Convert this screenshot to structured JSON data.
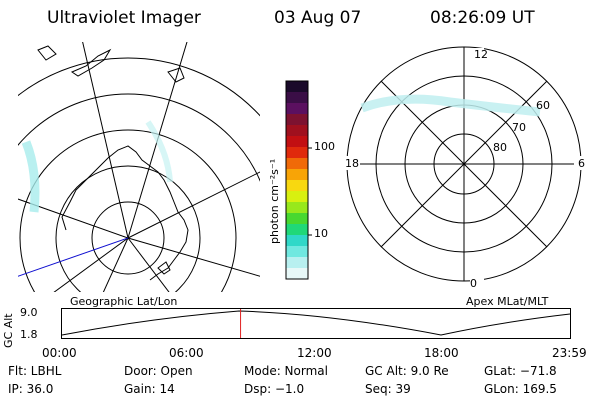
{
  "header": {
    "instrument": "Ultraviolet Imager",
    "date": "03 Aug 07",
    "time": "08:26:09 UT"
  },
  "colorbar": {
    "unit_label": "photon cm⁻²s⁻¹",
    "ticks": [
      "100",
      "10"
    ],
    "colors": [
      "#1a0a2a",
      "#3a0e46",
      "#5b1060",
      "#7d1230",
      "#a0101e",
      "#c20f12",
      "#e02a0c",
      "#f06a08",
      "#f8a406",
      "#f8d810",
      "#d8f010",
      "#98e81c",
      "#48d830",
      "#20d878",
      "#30d8c8",
      "#70e8e0",
      "#b8f0f0",
      "#e8f8f8"
    ]
  },
  "plots": {
    "left_label": "Geographic Lat/Lon",
    "right_label": "Apex MLat/MLT",
    "polar_labels": {
      "top": "12",
      "bottom": "0",
      "left": "18",
      "right": "6",
      "lat_60": "60",
      "lat_70": "70",
      "lat_80": "80"
    }
  },
  "altitude_plot": {
    "y_axis_label": "GC Alt",
    "y_ticks": [
      "9.0",
      "1.8"
    ],
    "x_ticks": [
      "00:00",
      "06:00",
      "12:00",
      "18:00",
      "23:59"
    ],
    "current_time_hours": 8.436
  },
  "info": [
    [
      "Flt: LBHL",
      "Door: Open",
      "Mode: Normal",
      "GC Alt: 9.0 Re",
      "GLat: −71.8"
    ],
    [
      "IP: 36.0",
      "Gain: 14",
      "Dsp:  −1.0",
      "Seq: 39",
      "GLon: 169.5"
    ]
  ]
}
